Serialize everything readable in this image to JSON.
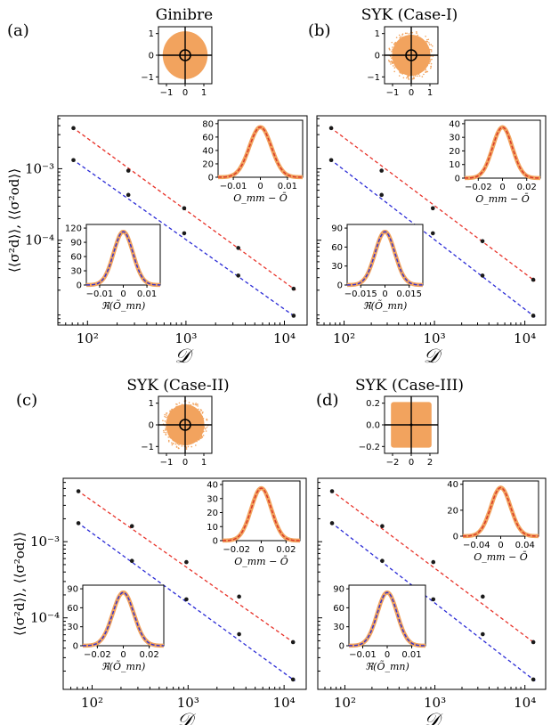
{
  "figure": {
    "ylabel": "⟨⟨σ²d⟩⟩, ⟨⟨σ²od⟩⟩",
    "xlabel": "𝒟",
    "inset_top_xlabel": "O_mm − Ō",
    "inset_bottom_xlabel": "ℜ(Õ_mn)"
  },
  "colors": {
    "diag_line": "#e8332a",
    "offdiag_line": "#2b2bd6",
    "scatter": "#f2a35e",
    "hist": "#f2a35e",
    "points": "#1a1a1a",
    "gaussian_top": "#d83a2a",
    "gaussian_bottom": "#3a34c8"
  },
  "chart_data": [
    {
      "panel": "(a)",
      "title": "Ginibre",
      "type": "scatter",
      "x": [
        72,
        260,
        960,
        3400,
        12400
      ],
      "series": [
        {
          "values": [
            0.0037,
            0.00094,
            0.00028,
            7.8e-05,
            2.1e-05
          ]
        },
        {
          "values": [
            0.00132,
            0.00043,
            0.000125,
            3.2e-05,
            8.8e-06
          ]
        }
      ],
      "xlim": [
        50,
        17000
      ],
      "ylim": [
        6.5e-06,
        0.0055
      ],
      "xscale": "log",
      "yscale": "log",
      "xticklabels": [
        "10²",
        "10³",
        "10⁴"
      ],
      "yticklabels": [
        "10⁻³",
        "10⁻⁴"
      ],
      "spectrum_shape": "disk",
      "spectrum_xticks": [
        "−1",
        "0",
        "1"
      ],
      "spectrum_yticks": [
        "1",
        "0",
        "−1"
      ],
      "inset_top": {
        "xticks": [
          "−0.01",
          "0",
          "0.01"
        ],
        "yticks": [
          "80",
          "60",
          "40",
          "20",
          "0"
        ]
      },
      "inset_bottom": {
        "xticks": [
          "−0.01",
          "0",
          "0.01"
        ],
        "yticks": [
          "120",
          "90",
          "60",
          "30",
          "0"
        ]
      }
    },
    {
      "panel": "(b)",
      "title": "SYK (Case-I)",
      "type": "scatter",
      "x": [
        72,
        260,
        960,
        3400,
        12400
      ],
      "series": [
        {
          "values": [
            0.0037,
            0.00094,
            0.00028,
            9.7e-05,
            2.8e-05
          ]
        },
        {
          "values": [
            0.00132,
            0.00043,
            0.000125,
            3.2e-05,
            8.8e-06
          ]
        }
      ],
      "xlim": [
        50,
        17000
      ],
      "ylim": [
        6.5e-06,
        0.0055
      ],
      "xscale": "log",
      "yscale": "log",
      "xticklabels": [
        "10²",
        "10³",
        "10⁴"
      ],
      "spectrum_shape": "noisy-disk",
      "spectrum_xticks": [
        "−1",
        "0",
        "1"
      ],
      "spectrum_yticks": [
        "1",
        "0",
        "−1"
      ],
      "inset_top": {
        "xticks": [
          "−0.02",
          "0",
          "0.02"
        ],
        "yticks": [
          "40",
          "30",
          "20",
          "10",
          "0"
        ]
      },
      "inset_bottom": {
        "xticks": [
          "−0.015",
          "0",
          "0.015"
        ],
        "yticks": [
          "90",
          "60",
          "30",
          "0"
        ]
      }
    },
    {
      "panel": "(c)",
      "title": "SYK (Case-II)",
      "type": "scatter",
      "x": [
        72,
        260,
        960,
        3400,
        12400
      ],
      "series": [
        {
          "values": [
            0.0046,
            0.0016,
            0.00054,
            0.00019,
            4.8e-05
          ]
        },
        {
          "values": [
            0.00175,
            0.00056,
            0.000175,
            6.1e-05,
            1.55e-05
          ]
        }
      ],
      "xlim": [
        50,
        17000
      ],
      "ylim": [
        1.15e-05,
        0.0068
      ],
      "xscale": "log",
      "yscale": "log",
      "xticklabels": [
        "10²",
        "10³",
        "10⁴"
      ],
      "yticklabels": [
        "10⁻³",
        "10⁻⁴"
      ],
      "spectrum_shape": "noisy-disk",
      "spectrum_xticks": [
        "−1",
        "0",
        "1"
      ],
      "spectrum_yticks": [
        "1",
        "0",
        "−1"
      ],
      "inset_top": {
        "xticks": [
          "−0.02",
          "0",
          "0.02"
        ],
        "yticks": [
          "40",
          "30",
          "20",
          "10",
          "0"
        ]
      },
      "inset_bottom": {
        "xticks": [
          "−0.02",
          "0",
          "0.02"
        ],
        "yticks": [
          "90",
          "60",
          "30",
          "0"
        ]
      }
    },
    {
      "panel": "(d)",
      "title": "SYK (Case-III)",
      "type": "scatter",
      "x": [
        72,
        260,
        960,
        3400,
        12400
      ],
      "series": [
        {
          "values": [
            0.0046,
            0.0016,
            0.00054,
            0.00019,
            4.8e-05
          ]
        },
        {
          "values": [
            0.00175,
            0.00056,
            0.000175,
            6.1e-05,
            1.55e-05
          ]
        }
      ],
      "xlim": [
        50,
        17000
      ],
      "ylim": [
        1.15e-05,
        0.0068
      ],
      "xscale": "log",
      "yscale": "log",
      "xticklabels": [
        "10²",
        "10³",
        "10⁴"
      ],
      "spectrum_shape": "rectangle",
      "spectrum_xticks": [
        "−2",
        "0",
        "2"
      ],
      "spectrum_yticks": [
        "0.2",
        "0.0",
        "−0.2"
      ],
      "inset_top": {
        "xticks": [
          "−0.04",
          "0",
          "0.04"
        ],
        "yticks": [
          "40",
          "20",
          "0"
        ]
      },
      "inset_bottom": {
        "xticks": [
          "−0.01",
          "0",
          "0.01"
        ],
        "yticks": [
          "90",
          "60",
          "30",
          "0"
        ]
      }
    }
  ]
}
